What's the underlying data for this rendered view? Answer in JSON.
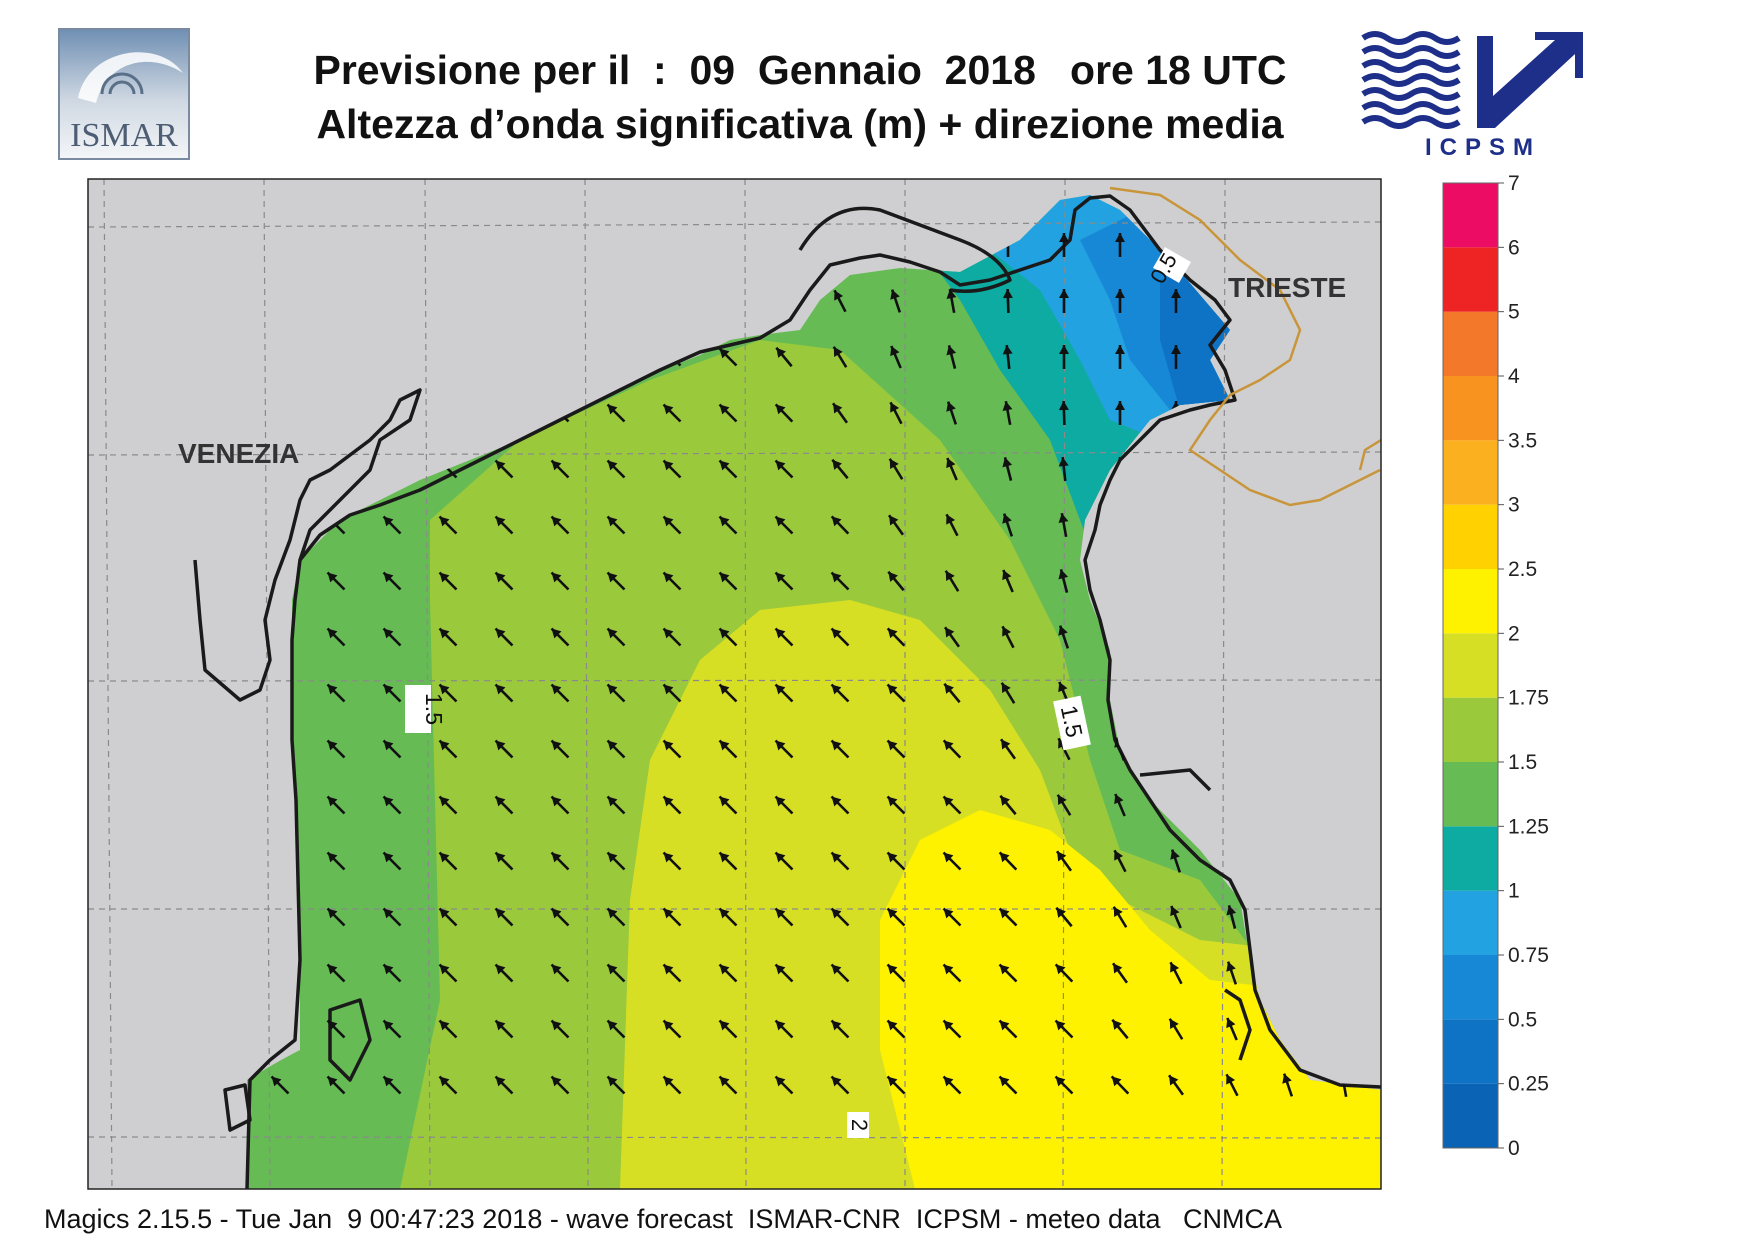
{
  "header": {
    "title_line1": "Previsione per il  :  09  Gennaio  2018   ore 18 UTC",
    "title_line2": "Altezza d’onda significativa (m) + direzione media"
  },
  "logos": {
    "left": "ISMAR",
    "right": "ICPSM"
  },
  "map": {
    "labels": {
      "city_west": "VENEZIA",
      "city_east": "TRIESTE"
    },
    "contour_labels": [
      "1.5",
      "1.5",
      "2",
      "0.5"
    ],
    "colors": {
      "land": "#cfcfd1",
      "coast": "#1a1a1a",
      "border": "#c9953a",
      "grid": "#8a8a8a",
      "arrow": "#111111"
    }
  },
  "colorbar": {
    "ticks": [
      "0",
      "0.25",
      "0.5",
      "0.75",
      "1",
      "1.25",
      "1.5",
      "1.75",
      "2",
      "2.5",
      "3",
      "3.5",
      "4",
      "5",
      "6",
      "7"
    ],
    "colors": [
      "#0a63b5",
      "#0f73c5",
      "#1788d6",
      "#23a2e2",
      "#0eaba2",
      "#66bb55",
      "#9ac93c",
      "#d6df24",
      "#fff200",
      "#ffd100",
      "#fbb01f",
      "#f7931e",
      "#f4782a",
      "#ee2424",
      "#ec0c64"
    ]
  },
  "footer": {
    "text": "Magics 2.15.5 - Tue Jan  9 00:47:23 2018 - wave forecast  ISMAR-CNR  ICPSM - meteo data   CNMCA"
  }
}
